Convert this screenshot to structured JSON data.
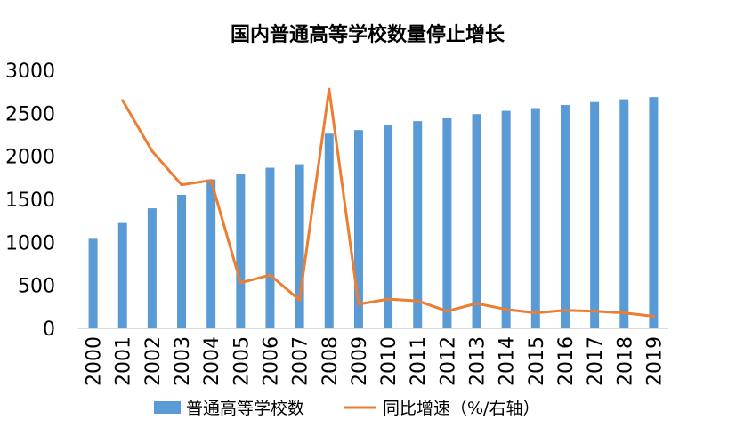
{
  "chart_data": {
    "type": "bar",
    "title": "国内普通高等学校数量停止增长",
    "categories": [
      "2000",
      "2001",
      "2002",
      "2003",
      "2004",
      "2005",
      "2006",
      "2007",
      "2008",
      "2009",
      "2010",
      "2011",
      "2012",
      "2013",
      "2014",
      "2015",
      "2016",
      "2017",
      "2018",
      "2019"
    ],
    "ylim": [
      0,
      3000
    ],
    "yticks": [
      "0",
      "500",
      "1000",
      "1500",
      "2000",
      "2500",
      "3000"
    ],
    "series": [
      {
        "name": "普通高等学校数",
        "type": "bar",
        "color": "#5B9BD5",
        "values": [
          1041,
          1225,
          1396,
          1552,
          1731,
          1792,
          1867,
          1908,
          2263,
          2305,
          2358,
          2409,
          2442,
          2491,
          2529,
          2560,
          2596,
          2631,
          2663,
          2688
        ]
      },
      {
        "name": "同比增速（%/右轴）",
        "type": "line",
        "color": "#ED7D31",
        "x_start": "2001",
        "values_plotted": [
          2650,
          2060,
          1670,
          1720,
          530,
          620,
          330,
          2780,
          280,
          340,
          320,
          200,
          290,
          220,
          180,
          210,
          200,
          180,
          140
        ]
      }
    ],
    "legend": {
      "position": "bottom"
    },
    "grid": false
  }
}
